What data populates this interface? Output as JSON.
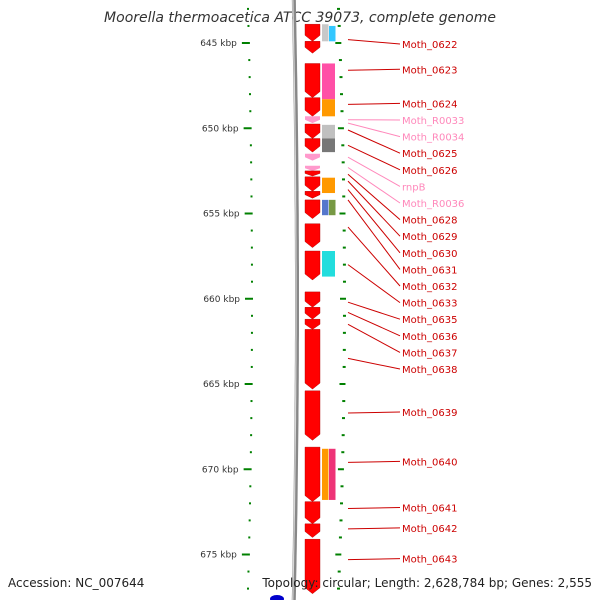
{
  "title": "Moorella thermoacetica ATCC 39073, complete genome",
  "accession_text": "Accession: NC_007644",
  "topology_text": "Topology: circular; Length: 2,628,784 bp; Genes: 2,555",
  "colors": {
    "cds": "#ff0000",
    "rna": "#ff99cc",
    "tick": "#008000",
    "backbone": "#888888",
    "label_cds": "#cc0000",
    "label_rna": "#ff88bb"
  },
  "diagram_data": {
    "type": "linear-genome-map",
    "units": "kbp",
    "kbp_range": [
      642.6,
      677.3
    ],
    "major_ticks": [
      {
        "kbp": 645,
        "label": "645 kbp"
      },
      {
        "kbp": 650,
        "label": "650 kbp"
      },
      {
        "kbp": 655,
        "label": "655 kbp"
      },
      {
        "kbp": 660,
        "label": "660 kbp"
      },
      {
        "kbp": 665,
        "label": "665 kbp"
      },
      {
        "kbp": 670,
        "label": "670 kbp"
      },
      {
        "kbp": 675,
        "label": "675 kbp"
      }
    ],
    "features": [
      {
        "kind": "cds",
        "start": 643.9,
        "end": 644.9
      },
      {
        "kind": "cds",
        "start": 644.9,
        "end": 645.6
      },
      {
        "kind": "cds",
        "start": 646.2,
        "end": 648.2
      },
      {
        "kind": "cds",
        "start": 648.2,
        "end": 649.3
      },
      {
        "kind": "rna",
        "start": 649.3,
        "end": 649.7
      },
      {
        "kind": "cds",
        "start": 649.75,
        "end": 650.6
      },
      {
        "kind": "cds",
        "start": 650.6,
        "end": 651.4
      },
      {
        "kind": "rna",
        "start": 651.5,
        "end": 651.9
      },
      {
        "kind": "rna",
        "start": 652.2,
        "end": 652.5
      },
      {
        "kind": "cds",
        "start": 652.5,
        "end": 652.8
      },
      {
        "kind": "cds",
        "start": 652.85,
        "end": 653.7
      },
      {
        "kind": "cds",
        "start": 653.7,
        "end": 654.1
      },
      {
        "kind": "cds",
        "start": 654.2,
        "end": 655.3
      },
      {
        "kind": "cds",
        "start": 655.6,
        "end": 657.0
      },
      {
        "kind": "cds",
        "start": 657.2,
        "end": 658.9
      },
      {
        "kind": "cds",
        "start": 659.6,
        "end": 660.5
      },
      {
        "kind": "cds",
        "start": 660.5,
        "end": 661.2
      },
      {
        "kind": "cds",
        "start": 661.2,
        "end": 661.8
      },
      {
        "kind": "cds",
        "start": 661.8,
        "end": 665.3
      },
      {
        "kind": "cds",
        "start": 665.4,
        "end": 668.3
      },
      {
        "kind": "cds",
        "start": 668.7,
        "end": 671.9
      },
      {
        "kind": "cds",
        "start": 671.9,
        "end": 673.2
      },
      {
        "kind": "cds",
        "start": 673.2,
        "end": 674.0
      },
      {
        "kind": "cds",
        "start": 674.1,
        "end": 677.3
      }
    ],
    "domains": [
      {
        "start": 643.9,
        "end": 644.9,
        "lane": 0,
        "color": "#c8c8c8"
      },
      {
        "start": 644.0,
        "end": 644.9,
        "lane": 1,
        "color": "#33c7ff"
      },
      {
        "start": 646.2,
        "end": 648.3,
        "lane": 0,
        "color": "#ff4fa6"
      },
      {
        "start": 648.3,
        "end": 649.3,
        "lane": 0,
        "color": "#ff9900"
      },
      {
        "start": 649.8,
        "end": 650.6,
        "lane": 0,
        "color": "#c0c0c0"
      },
      {
        "start": 650.6,
        "end": 651.4,
        "lane": 0,
        "color": "#777777"
      },
      {
        "start": 652.9,
        "end": 653.8,
        "lane": 0,
        "color": "#ff9900"
      },
      {
        "start": 654.2,
        "end": 655.1,
        "lane": 0,
        "color": "#5577cc"
      },
      {
        "start": 654.2,
        "end": 655.1,
        "lane": 1,
        "color": "#779944"
      },
      {
        "start": 657.2,
        "end": 658.7,
        "lane": 0,
        "color": "#22dddd"
      },
      {
        "start": 668.8,
        "end": 671.8,
        "lane": 0,
        "color": "#ff9900"
      },
      {
        "start": 668.8,
        "end": 671.8,
        "lane": 1,
        "color": "#ee3377"
      }
    ],
    "gene_labels": [
      {
        "name": "Moth_0622",
        "kind": "cds",
        "target_kbp": 644.8
      },
      {
        "name": "Moth_0623",
        "kind": "cds",
        "target_kbp": 646.6
      },
      {
        "name": "Moth_0624",
        "kind": "cds",
        "target_kbp": 648.6
      },
      {
        "name": "Moth_R0033",
        "kind": "rna",
        "target_kbp": 649.5
      },
      {
        "name": "Moth_R0034",
        "kind": "rna",
        "target_kbp": 649.7
      },
      {
        "name": "Moth_0625",
        "kind": "cds",
        "target_kbp": 650.1
      },
      {
        "name": "Moth_0626",
        "kind": "cds",
        "target_kbp": 651.0
      },
      {
        "name": "rnpB",
        "kind": "rna",
        "target_kbp": 651.7
      },
      {
        "name": "Moth_R0036",
        "kind": "rna",
        "target_kbp": 652.3
      },
      {
        "name": "Moth_0628",
        "kind": "cds",
        "target_kbp": 652.7
      },
      {
        "name": "Moth_0629",
        "kind": "cds",
        "target_kbp": 653.1
      },
      {
        "name": "Moth_0630",
        "kind": "cds",
        "target_kbp": 653.6
      },
      {
        "name": "Moth_0631",
        "kind": "cds",
        "target_kbp": 654.2
      },
      {
        "name": "Moth_0632",
        "kind": "cds",
        "target_kbp": 655.8
      },
      {
        "name": "Moth_0633",
        "kind": "cds",
        "target_kbp": 658.0
      },
      {
        "name": "Moth_0635",
        "kind": "cds",
        "target_kbp": 660.2
      },
      {
        "name": "Moth_0636",
        "kind": "cds",
        "target_kbp": 660.8
      },
      {
        "name": "Moth_0637",
        "kind": "cds",
        "target_kbp": 661.5
      },
      {
        "name": "Moth_0638",
        "kind": "cds",
        "target_kbp": 663.5
      },
      {
        "name": "Moth_0639",
        "kind": "cds",
        "target_kbp": 666.7
      },
      {
        "name": "Moth_0640",
        "kind": "cds",
        "target_kbp": 669.6
      },
      {
        "name": "Moth_0641",
        "kind": "cds",
        "target_kbp": 672.3
      },
      {
        "name": "Moth_0642",
        "kind": "cds",
        "target_kbp": 673.5
      },
      {
        "name": "Moth_0643",
        "kind": "cds",
        "target_kbp": 675.3
      }
    ]
  }
}
